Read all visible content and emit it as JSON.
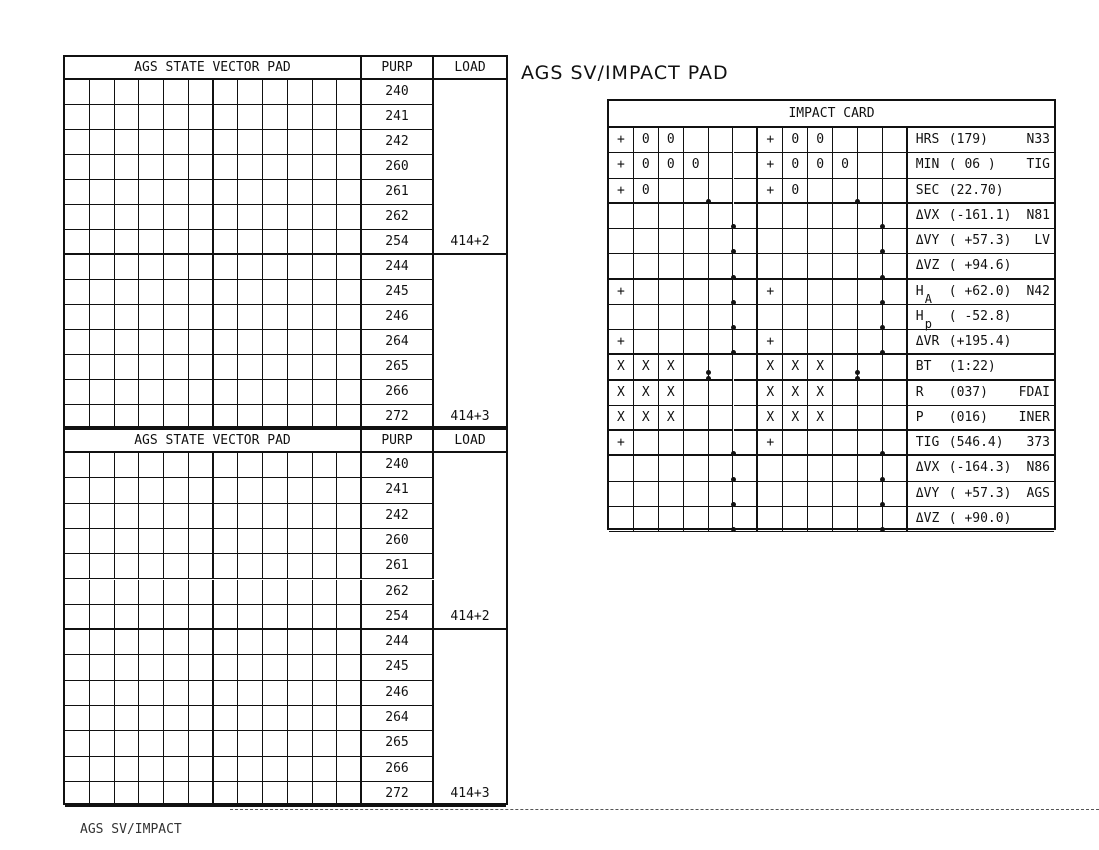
{
  "page_title": "AGS SV/IMPACT PAD",
  "footer_label": "AGS SV/IMPACT",
  "state_vector_pads": [
    {
      "title": "AGS STATE VECTOR PAD",
      "purp_header": "PURP",
      "load_header": "LOAD",
      "groups": [
        {
          "purp": [
            "240",
            "241",
            "242",
            "260",
            "261",
            "262",
            "254"
          ],
          "load": "414+2"
        },
        {
          "purp": [
            "244",
            "245",
            "246",
            "264",
            "265",
            "266",
            "272"
          ],
          "load": "414+3"
        }
      ]
    },
    {
      "title": "AGS STATE VECTOR PAD",
      "purp_header": "PURP",
      "load_header": "LOAD",
      "groups": [
        {
          "purp": [
            "240",
            "241",
            "242",
            "260",
            "261",
            "262",
            "254"
          ],
          "load": "414+2"
        },
        {
          "purp": [
            "244",
            "245",
            "246",
            "264",
            "265",
            "266",
            "272"
          ],
          "load": "414+3"
        }
      ]
    }
  ],
  "impact_card": {
    "title": "IMPACT CARD",
    "rows": [
      {
        "cells": [
          "+",
          "0",
          "0",
          "",
          "",
          ""
        ],
        "dot_after": null,
        "name": "HRS",
        "sub": "",
        "value": "(179)",
        "tag": "N33",
        "thick": false
      },
      {
        "cells": [
          "+",
          "0",
          "0",
          "0",
          "",
          ""
        ],
        "dot_after": null,
        "name": "MIN",
        "sub": "",
        "value": "( 06 )",
        "tag": "TIG",
        "thick": false
      },
      {
        "cells": [
          "+",
          "0",
          "",
          "",
          "",
          ""
        ],
        "dot_after": 4,
        "name": "SEC",
        "sub": "",
        "value": "(22.70)",
        "tag": "",
        "thick": true
      },
      {
        "cells": [
          "",
          "",
          "",
          "",
          "",
          ""
        ],
        "dot_after": 5,
        "name": "ΔVX",
        "sub": "",
        "value": "(-161.1)",
        "tag": "N81",
        "thick": false
      },
      {
        "cells": [
          "",
          "",
          "",
          "",
          "",
          ""
        ],
        "dot_after": 5,
        "name": "ΔVY",
        "sub": "",
        "value": "( +57.3)",
        "tag": "LV",
        "thick": false
      },
      {
        "cells": [
          "",
          "",
          "",
          "",
          "",
          ""
        ],
        "dot_after": 5,
        "name": "ΔVZ",
        "sub": "",
        "value": "( +94.6)",
        "tag": "",
        "thick": true
      },
      {
        "cells": [
          "+",
          "",
          "",
          "",
          "",
          ""
        ],
        "dot_after": 5,
        "name": "H",
        "sub": "A",
        "value": "( +62.0)",
        "tag": "N42",
        "thick": false
      },
      {
        "cells": [
          "",
          "",
          "",
          "",
          "",
          ""
        ],
        "dot_after": 5,
        "name": "H",
        "sub": "p",
        "value": "( -52.8)",
        "tag": "",
        "thick": false
      },
      {
        "cells": [
          "+",
          "",
          "",
          "",
          "",
          ""
        ],
        "dot_after": 5,
        "name": "ΔVR",
        "sub": "",
        "value": "(+195.4)",
        "tag": "",
        "thick": true
      },
      {
        "cells": [
          "X",
          "X",
          "X",
          "",
          "",
          ""
        ],
        "dot_after": 4,
        "name": "BT",
        "sub": "",
        "value": "(1:22)",
        "tag": "",
        "thick": true,
        "colon": true
      },
      {
        "cells": [
          "X",
          "X",
          "X",
          "",
          "",
          ""
        ],
        "dot_after": null,
        "name": "R",
        "sub": "",
        "value": "(037)",
        "tag": "FDAI",
        "thick": false
      },
      {
        "cells": [
          "X",
          "X",
          "X",
          "",
          "",
          ""
        ],
        "dot_after": null,
        "name": "P",
        "sub": "",
        "value": "(016)",
        "tag": "INER",
        "thick": true
      },
      {
        "cells": [
          "+",
          "",
          "",
          "",
          "",
          ""
        ],
        "dot_after": 5,
        "name": "TIG",
        "sub": "",
        "value": "(546.4)",
        "tag": "373",
        "thick": true
      },
      {
        "cells": [
          "",
          "",
          "",
          "",
          "",
          ""
        ],
        "dot_after": 5,
        "name": "ΔVX",
        "sub": "",
        "value": "(-164.3)",
        "tag": "N86",
        "thick": false
      },
      {
        "cells": [
          "",
          "",
          "",
          "",
          "",
          ""
        ],
        "dot_after": 5,
        "name": "ΔVY",
        "sub": "",
        "value": "( +57.3)",
        "tag": "AGS",
        "thick": false
      },
      {
        "cells": [
          "",
          "",
          "",
          "",
          "",
          ""
        ],
        "dot_after": 5,
        "name": "ΔVZ",
        "sub": "",
        "value": "( +90.0)",
        "tag": "",
        "thick": false
      }
    ]
  }
}
